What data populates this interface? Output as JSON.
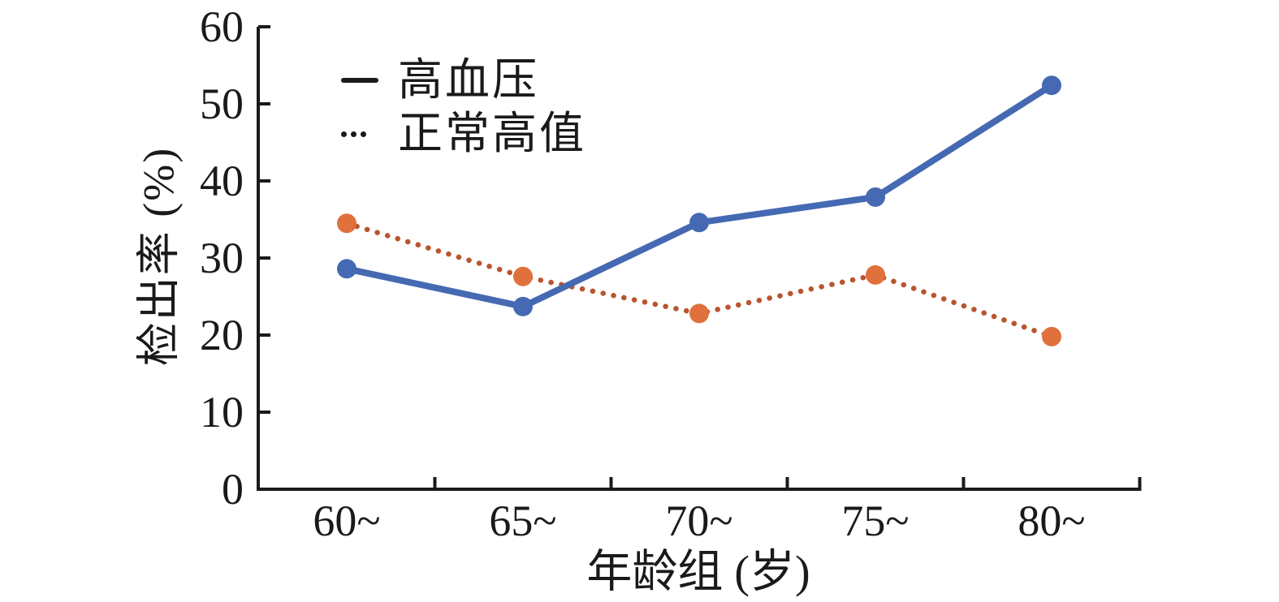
{
  "chart_data": {
    "type": "line",
    "title": "",
    "xlabel": "年龄组 (岁)",
    "ylabel": "检出率 (%)",
    "categories": [
      "60~",
      "65~",
      "70~",
      "75~",
      "80~"
    ],
    "series": [
      {
        "name": "高血压",
        "line_style": "solid",
        "line_color": "#4569b2",
        "marker_color": "#4569b2",
        "values": [
          28.6,
          23.7,
          34.6,
          37.9,
          52.4
        ]
      },
      {
        "name": "正常高值",
        "line_style": "dotted",
        "line_color": "#b9552e",
        "marker_color": "#e0713c",
        "values": [
          34.5,
          27.6,
          22.8,
          27.8,
          19.8
        ]
      }
    ],
    "ylim": [
      0,
      60
    ],
    "yticks": [
      0,
      10,
      20,
      30,
      40,
      50,
      60
    ],
    "grid": false,
    "legend_position": "upper-left",
    "legend_swatch_color": "#1a1a1a",
    "axis_color": "#1a1a1a",
    "tick_direction": "in"
  }
}
